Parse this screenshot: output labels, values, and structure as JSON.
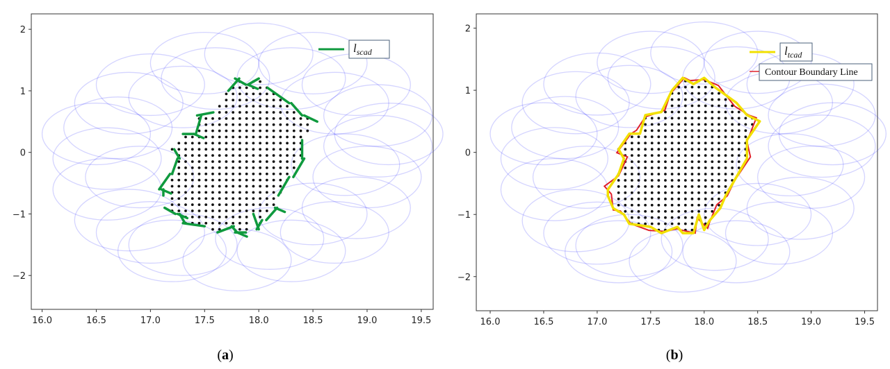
{
  "chart_data": [
    {
      "type": "scatter",
      "panel": "a",
      "caption": "(a)",
      "xlim": [
        15.9,
        19.61
      ],
      "ylim": [
        -2.55,
        2.25
      ],
      "xticks": [
        "16.0",
        "16.5",
        "17.0",
        "17.5",
        "18.0",
        "18.5",
        "19.0",
        "19.5"
      ],
      "yticks": [
        "2",
        "1",
        "0",
        "−1",
        "−2"
      ],
      "legend": [
        {
          "label": "l",
          "sub": "scad",
          "color": "#0f9a3e"
        }
      ],
      "legend_position": "top-right",
      "line_color": "#0f9a3e",
      "line_style": "fragmented"
    },
    {
      "type": "scatter",
      "panel": "b",
      "caption": "(b)",
      "xlim": [
        15.87,
        19.62
      ],
      "ylim": [
        -2.55,
        2.23
      ],
      "xticks": [
        "16.0",
        "16.5",
        "17.0",
        "17.5",
        "18.0",
        "18.5",
        "19.0",
        "19.5"
      ],
      "yticks": [
        "2",
        "1",
        "0",
        "−1",
        "−2"
      ],
      "legend": [
        {
          "label": "l",
          "sub": "tcad",
          "color": "#f2e000"
        },
        {
          "label": "Contour Boundary Line",
          "color": "#e0202a"
        }
      ],
      "legend_position": "top-right",
      "line_color": "#f2e000",
      "contour_color": "#e0202a",
      "line_style": "continuous"
    }
  ],
  "shared": {
    "circle_radius": 0.5,
    "circle_color": "#3b3bff",
    "circle_centers": [
      [
        17.0,
        1.1
      ],
      [
        17.5,
        1.45
      ],
      [
        18.0,
        1.6
      ],
      [
        18.5,
        1.45
      ],
      [
        18.9,
        1.1
      ],
      [
        19.1,
        0.6
      ],
      [
        19.1,
        0.1
      ],
      [
        19.0,
        -0.4
      ],
      [
        18.9,
        -0.9
      ],
      [
        18.7,
        -1.3
      ],
      [
        18.3,
        -1.6
      ],
      [
        17.8,
        -1.75
      ],
      [
        17.2,
        -1.6
      ],
      [
        16.8,
        -1.1
      ],
      [
        16.6,
        -0.6
      ],
      [
        16.6,
        -0.1
      ],
      [
        16.7,
        0.4
      ],
      [
        16.8,
        0.8
      ],
      [
        17.3,
        0.9
      ],
      [
        18.7,
        0.8
      ],
      [
        18.8,
        -0.2
      ],
      [
        16.9,
        -0.4
      ],
      [
        17.6,
        1.2
      ],
      [
        18.3,
        1.2
      ],
      [
        16.5,
        0.3
      ],
      [
        18.5,
        -1.0
      ],
      [
        17.0,
        -1.3
      ],
      [
        19.2,
        0.3
      ],
      [
        18.1,
        -1.4
      ],
      [
        17.3,
        -1.5
      ]
    ],
    "boundary": [
      [
        17.1,
        -0.6
      ],
      [
        17.2,
        -0.35
      ],
      [
        17.25,
        -0.1
      ],
      [
        17.2,
        0.05
      ],
      [
        17.3,
        0.3
      ],
      [
        17.4,
        0.3
      ],
      [
        17.45,
        0.6
      ],
      [
        17.6,
        0.65
      ],
      [
        17.7,
        1.0
      ],
      [
        17.8,
        1.2
      ],
      [
        17.9,
        1.1
      ],
      [
        18.0,
        1.2
      ],
      [
        18.1,
        1.05
      ],
      [
        18.3,
        0.8
      ],
      [
        18.4,
        0.6
      ],
      [
        18.52,
        0.5
      ],
      [
        18.4,
        0.2
      ],
      [
        18.4,
        -0.1
      ],
      [
        18.3,
        -0.4
      ],
      [
        18.2,
        -0.7
      ],
      [
        18.15,
        -0.9
      ],
      [
        18.05,
        -1.1
      ],
      [
        18.0,
        -1.25
      ],
      [
        17.95,
        -1.0
      ],
      [
        17.9,
        -1.3
      ],
      [
        17.8,
        -1.3
      ],
      [
        17.75,
        -1.2
      ],
      [
        17.6,
        -1.3
      ],
      [
        17.5,
        -1.2
      ],
      [
        17.3,
        -1.15
      ],
      [
        17.25,
        -1.0
      ],
      [
        17.15,
        -0.9
      ],
      [
        17.1,
        -0.7
      ]
    ],
    "grid_step": [
      0.0625,
      0.1
    ]
  }
}
